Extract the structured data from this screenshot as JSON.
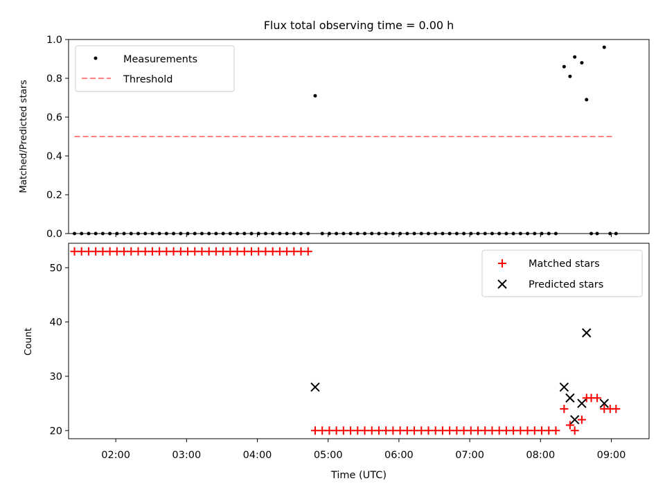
{
  "figure": {
    "title": "Flux total observing time = 0.00 h"
  },
  "chart_data": [
    {
      "type": "scatter",
      "ylabel": "Matched/Predicted stars",
      "xlim": [
        "01:20",
        "09:32"
      ],
      "ylim": [
        0,
        1.0
      ],
      "yticks": [
        "0.0",
        "0.2",
        "0.4",
        "0.6",
        "0.8",
        "1.0"
      ],
      "grid": false,
      "legend_position": "top-left",
      "series": [
        {
          "name": "Measurements",
          "marker": "dot",
          "color": "#000000",
          "points": [
            [
              "01:25",
              0
            ],
            [
              "01:31",
              0
            ],
            [
              "01:37",
              0
            ],
            [
              "01:43",
              0
            ],
            [
              "01:49",
              0
            ],
            [
              "01:55",
              0
            ],
            [
              "02:01",
              0
            ],
            [
              "02:07",
              0
            ],
            [
              "02:13",
              0
            ],
            [
              "02:19",
              0
            ],
            [
              "02:25",
              0
            ],
            [
              "02:31",
              0
            ],
            [
              "02:37",
              0
            ],
            [
              "02:43",
              0
            ],
            [
              "02:49",
              0
            ],
            [
              "02:55",
              0
            ],
            [
              "03:01",
              0
            ],
            [
              "03:07",
              0
            ],
            [
              "03:13",
              0
            ],
            [
              "03:19",
              0
            ],
            [
              "03:25",
              0
            ],
            [
              "03:31",
              0
            ],
            [
              "03:37",
              0
            ],
            [
              "03:43",
              0
            ],
            [
              "03:49",
              0
            ],
            [
              "03:55",
              0
            ],
            [
              "04:01",
              0
            ],
            [
              "04:07",
              0
            ],
            [
              "04:13",
              0
            ],
            [
              "04:19",
              0
            ],
            [
              "04:25",
              0
            ],
            [
              "04:31",
              0
            ],
            [
              "04:37",
              0
            ],
            [
              "04:43",
              0
            ],
            [
              "04:49",
              0.71
            ],
            [
              "04:55",
              0
            ],
            [
              "05:01",
              0
            ],
            [
              "05:07",
              0
            ],
            [
              "05:13",
              0
            ],
            [
              "05:19",
              0
            ],
            [
              "05:25",
              0
            ],
            [
              "05:31",
              0
            ],
            [
              "05:37",
              0
            ],
            [
              "05:43",
              0
            ],
            [
              "05:49",
              0
            ],
            [
              "05:55",
              0
            ],
            [
              "06:01",
              0
            ],
            [
              "06:07",
              0
            ],
            [
              "06:13",
              0
            ],
            [
              "06:19",
              0
            ],
            [
              "06:25",
              0
            ],
            [
              "06:31",
              0
            ],
            [
              "06:37",
              0
            ],
            [
              "06:43",
              0
            ],
            [
              "06:49",
              0
            ],
            [
              "06:55",
              0
            ],
            [
              "07:01",
              0
            ],
            [
              "07:07",
              0
            ],
            [
              "07:13",
              0
            ],
            [
              "07:19",
              0
            ],
            [
              "07:25",
              0
            ],
            [
              "07:31",
              0
            ],
            [
              "07:37",
              0
            ],
            [
              "07:43",
              0
            ],
            [
              "07:49",
              0
            ],
            [
              "07:55",
              0
            ],
            [
              "08:01",
              0
            ],
            [
              "08:07",
              0
            ],
            [
              "08:13",
              0
            ],
            [
              "08:20",
              0.86
            ],
            [
              "08:25",
              0.81
            ],
            [
              "08:29",
              0.91
            ],
            [
              "08:35",
              0.88
            ],
            [
              "08:39",
              0.69
            ],
            [
              "08:43",
              0
            ],
            [
              "08:48",
              0
            ],
            [
              "08:54",
              0.96
            ],
            [
              "08:59",
              0
            ],
            [
              "09:04",
              0
            ]
          ]
        },
        {
          "name": "Threshold",
          "line": "dashed",
          "color": "#ff7f7f",
          "points": [
            [
              "01:25",
              0.5
            ],
            [
              "09:02",
              0.5
            ]
          ]
        }
      ]
    },
    {
      "type": "scatter",
      "xlabel": "Time (UTC)",
      "ylabel": "Count",
      "xlim": [
        "01:20",
        "09:32"
      ],
      "ylim": [
        18.5,
        54.5
      ],
      "xticks": [
        "02:00",
        "03:00",
        "04:00",
        "05:00",
        "06:00",
        "07:00",
        "08:00",
        "09:00"
      ],
      "yticks": [
        "20",
        "30",
        "40",
        "50"
      ],
      "grid": false,
      "legend_position": "top-right",
      "series": [
        {
          "name": "Matched stars",
          "marker": "plus",
          "color": "#ff0000",
          "points": [
            [
              "01:25",
              53
            ],
            [
              "01:31",
              53
            ],
            [
              "01:37",
              53
            ],
            [
              "01:43",
              53
            ],
            [
              "01:49",
              53
            ],
            [
              "01:55",
              53
            ],
            [
              "02:01",
              53
            ],
            [
              "02:07",
              53
            ],
            [
              "02:13",
              53
            ],
            [
              "02:19",
              53
            ],
            [
              "02:25",
              53
            ],
            [
              "02:31",
              53
            ],
            [
              "02:37",
              53
            ],
            [
              "02:43",
              53
            ],
            [
              "02:49",
              53
            ],
            [
              "02:55",
              53
            ],
            [
              "03:01",
              53
            ],
            [
              "03:07",
              53
            ],
            [
              "03:13",
              53
            ],
            [
              "03:19",
              53
            ],
            [
              "03:25",
              53
            ],
            [
              "03:31",
              53
            ],
            [
              "03:37",
              53
            ],
            [
              "03:43",
              53
            ],
            [
              "03:49",
              53
            ],
            [
              "03:55",
              53
            ],
            [
              "04:01",
              53
            ],
            [
              "04:07",
              53
            ],
            [
              "04:13",
              53
            ],
            [
              "04:19",
              53
            ],
            [
              "04:25",
              53
            ],
            [
              "04:31",
              53
            ],
            [
              "04:37",
              53
            ],
            [
              "04:43",
              53
            ],
            [
              "04:49",
              20
            ],
            [
              "04:55",
              20
            ],
            [
              "05:01",
              20
            ],
            [
              "05:07",
              20
            ],
            [
              "05:13",
              20
            ],
            [
              "05:19",
              20
            ],
            [
              "05:25",
              20
            ],
            [
              "05:31",
              20
            ],
            [
              "05:37",
              20
            ],
            [
              "05:43",
              20
            ],
            [
              "05:49",
              20
            ],
            [
              "05:55",
              20
            ],
            [
              "06:01",
              20
            ],
            [
              "06:07",
              20
            ],
            [
              "06:13",
              20
            ],
            [
              "06:19",
              20
            ],
            [
              "06:25",
              20
            ],
            [
              "06:31",
              20
            ],
            [
              "06:37",
              20
            ],
            [
              "06:43",
              20
            ],
            [
              "06:49",
              20
            ],
            [
              "06:55",
              20
            ],
            [
              "07:01",
              20
            ],
            [
              "07:07",
              20
            ],
            [
              "07:13",
              20
            ],
            [
              "07:19",
              20
            ],
            [
              "07:25",
              20
            ],
            [
              "07:31",
              20
            ],
            [
              "07:37",
              20
            ],
            [
              "07:43",
              20
            ],
            [
              "07:49",
              20
            ],
            [
              "07:55",
              20
            ],
            [
              "08:01",
              20
            ],
            [
              "08:07",
              20
            ],
            [
              "08:13",
              20
            ],
            [
              "08:20",
              24
            ],
            [
              "08:25",
              21
            ],
            [
              "08:29",
              20
            ],
            [
              "08:35",
              22
            ],
            [
              "08:39",
              26
            ],
            [
              "08:43",
              26
            ],
            [
              "08:48",
              26
            ],
            [
              "08:54",
              24
            ],
            [
              "08:59",
              24
            ],
            [
              "09:04",
              24
            ]
          ]
        },
        {
          "name": "Predicted stars",
          "marker": "x",
          "color": "#000000",
          "points": [
            [
              "04:49",
              28
            ],
            [
              "08:20",
              28
            ],
            [
              "08:25",
              26
            ],
            [
              "08:29",
              22
            ],
            [
              "08:35",
              25
            ],
            [
              "08:39",
              38
            ],
            [
              "08:54",
              25
            ]
          ]
        }
      ]
    }
  ]
}
